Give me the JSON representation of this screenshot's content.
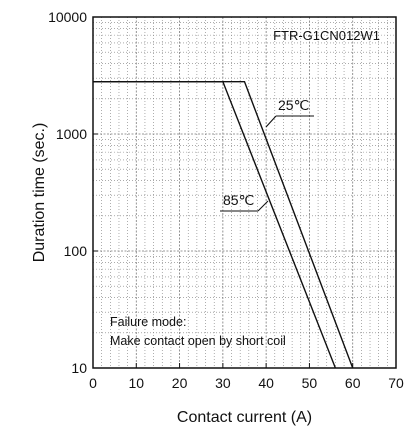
{
  "chart_data": {
    "type": "line",
    "title": "",
    "model_label": "FTR-G1CN012W1",
    "xlabel": "Contact current (A)",
    "ylabel": "Duration time (sec.)",
    "xlim": [
      0,
      70
    ],
    "ylim": [
      10,
      10000
    ],
    "y_scale": "log",
    "x_ticks": [
      0,
      10,
      20,
      30,
      40,
      50,
      60,
      70
    ],
    "y_ticks": [
      10,
      100,
      1000,
      10000
    ],
    "grid": true,
    "legend": "none",
    "series": [
      {
        "name": "25℃",
        "x": [
          0,
          35,
          60
        ],
        "y": [
          2800,
          2800,
          10
        ]
      },
      {
        "name": "85℃",
        "x": [
          0,
          30,
          56
        ],
        "y": [
          2800,
          2800,
          10
        ]
      }
    ],
    "annotations": [
      "Failure mode:",
      "Make contact open by short coil"
    ]
  },
  "colors": {
    "line": "#111111",
    "grid": "#7a7a7a",
    "frame": "#111111",
    "background": "#ffffff"
  }
}
